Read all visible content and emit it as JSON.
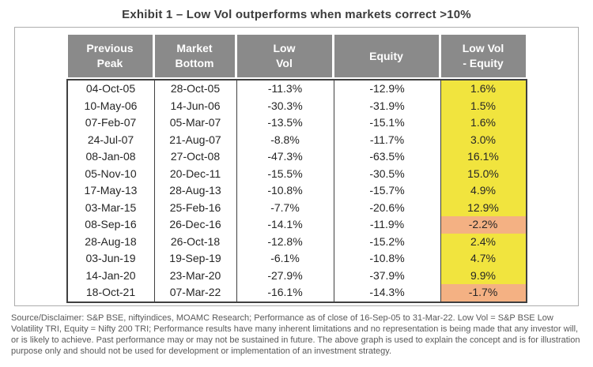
{
  "title": "Exhibit 1 – Low Vol outperforms when markets correct >10%",
  "colors": {
    "header_bg": "#8a8a8a",
    "header_text": "#ffffff",
    "table_border": "#404040",
    "outer_frame_border": "#adadad",
    "positive_highlight": "#f1e43e",
    "negative_highlight": "#f4b183",
    "body_text": "#262626",
    "disclaimer_text": "#595959",
    "title_text": "#3c3c3c"
  },
  "table": {
    "columns": [
      {
        "key": "previous_peak",
        "label": "Previous\nPeak"
      },
      {
        "key": "market_bottom",
        "label": "Market\nBottom"
      },
      {
        "key": "low_vol",
        "label": "Low\nVol"
      },
      {
        "key": "equity",
        "label": "Equity"
      },
      {
        "key": "low_vol_minus_equity",
        "label": "Low Vol\n- Equity"
      }
    ],
    "rows": [
      {
        "cells": [
          "04-Oct-05",
          "28-Oct-05",
          "-11.3%",
          "-12.9%",
          "1.6%"
        ],
        "highlight": "yellow"
      },
      {
        "cells": [
          "10-May-06",
          "14-Jun-06",
          "-30.3%",
          "-31.9%",
          "1.5%"
        ],
        "highlight": "yellow"
      },
      {
        "cells": [
          "07-Feb-07",
          "05-Mar-07",
          "-13.5%",
          "-15.1%",
          "1.6%"
        ],
        "highlight": "yellow"
      },
      {
        "cells": [
          "24-Jul-07",
          "21-Aug-07",
          "-8.8%",
          "-11.7%",
          "3.0%"
        ],
        "highlight": "yellow"
      },
      {
        "cells": [
          "08-Jan-08",
          "27-Oct-08",
          "-47.3%",
          "-63.5%",
          "16.1%"
        ],
        "highlight": "yellow"
      },
      {
        "cells": [
          "05-Nov-10",
          "20-Dec-11",
          "-15.5%",
          "-30.5%",
          "15.0%"
        ],
        "highlight": "yellow"
      },
      {
        "cells": [
          "17-May-13",
          "28-Aug-13",
          "-10.8%",
          "-15.7%",
          "4.9%"
        ],
        "highlight": "yellow"
      },
      {
        "cells": [
          "03-Mar-15",
          "25-Feb-16",
          "-7.7%",
          "-20.6%",
          "12.9%"
        ],
        "highlight": "yellow"
      },
      {
        "cells": [
          "08-Sep-16",
          "26-Dec-16",
          "-14.1%",
          "-11.9%",
          "-2.2%"
        ],
        "highlight": "orange"
      },
      {
        "cells": [
          "28-Aug-18",
          "26-Oct-18",
          "-12.8%",
          "-15.2%",
          "2.4%"
        ],
        "highlight": "yellow"
      },
      {
        "cells": [
          "03-Jun-19",
          "19-Sep-19",
          "-6.1%",
          "-10.8%",
          "4.7%"
        ],
        "highlight": "yellow"
      },
      {
        "cells": [
          "14-Jan-20",
          "23-Mar-20",
          "-27.9%",
          "-37.9%",
          "9.9%"
        ],
        "highlight": "yellow"
      },
      {
        "cells": [
          "18-Oct-21",
          "07-Mar-22",
          "-16.1%",
          "-14.3%",
          "-1.7%"
        ],
        "highlight": "orange"
      }
    ]
  },
  "chart_data": {
    "type": "table",
    "title": "Exhibit 1 – Low Vol outperforms when markets correct >10%",
    "columns": [
      "Previous Peak",
      "Market Bottom",
      "Low Vol",
      "Equity",
      "Low Vol - Equity"
    ],
    "rows": [
      [
        "04-Oct-05",
        "28-Oct-05",
        -11.3,
        -12.9,
        1.6
      ],
      [
        "10-May-06",
        "14-Jun-06",
        -30.3,
        -31.9,
        1.5
      ],
      [
        "07-Feb-07",
        "05-Mar-07",
        -13.5,
        -15.1,
        1.6
      ],
      [
        "24-Jul-07",
        "21-Aug-07",
        -8.8,
        -11.7,
        3.0
      ],
      [
        "08-Jan-08",
        "27-Oct-08",
        -47.3,
        -63.5,
        16.1
      ],
      [
        "05-Nov-10",
        "20-Dec-11",
        -15.5,
        -30.5,
        15.0
      ],
      [
        "17-May-13",
        "28-Aug-13",
        -10.8,
        -15.7,
        4.9
      ],
      [
        "03-Mar-15",
        "25-Feb-16",
        -7.7,
        -20.6,
        12.9
      ],
      [
        "08-Sep-16",
        "26-Dec-16",
        -14.1,
        -11.9,
        -2.2
      ],
      [
        "28-Aug-18",
        "26-Oct-18",
        -12.8,
        -15.2,
        2.4
      ],
      [
        "03-Jun-19",
        "19-Sep-19",
        -6.1,
        -10.8,
        4.7
      ],
      [
        "14-Jan-20",
        "23-Mar-20",
        -27.9,
        -37.9,
        9.9
      ],
      [
        "18-Oct-21",
        "07-Mar-22",
        -16.1,
        -14.3,
        -1.7
      ]
    ],
    "units": "percent"
  },
  "disclaimer": "Source/Disclaimer: S&P BSE, niftyindices, MOAMC Research; Performance as of close of 16-Sep-05 to 31-Mar-22. Low Vol = S&P BSE Low Volatility TRI, Equity = Nifty 200 TRI; Performance results have many inherent limitations and no representation is being made that any investor will, or is likely to achieve. Past performance may or may not be sustained in future. The above graph is used to explain the concept and is for illustration purpose only and should not be used for development or implementation of an investment strategy."
}
